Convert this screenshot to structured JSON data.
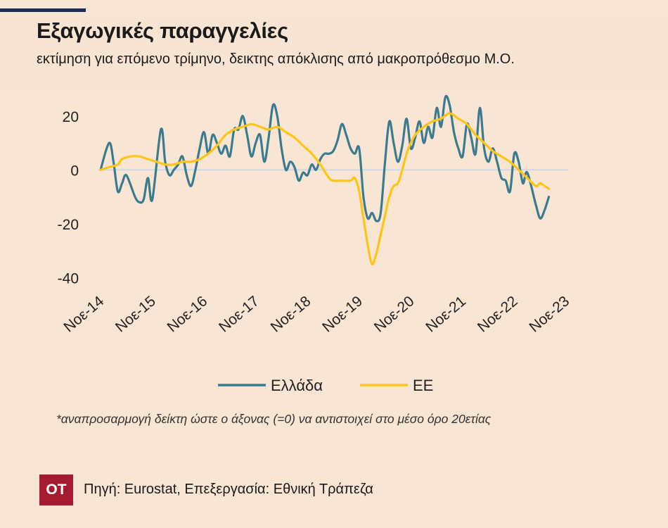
{
  "header": {
    "title": "Εξαγωγικές παραγγελίες",
    "subtitle": "εκτίμηση για επόμενο τρίμηνο, δεικτης απόκλισης από μακροπρόθεσμο Μ.Ο."
  },
  "footnote": "*αναπροσαρμογή δείκτη ώστε ο άξονας (=0) να αντιστοιχεί στο μέσο όρο 20ετίας",
  "source": "Πηγή: Eurostat, Επεξεργασία: Εθνική Τράπεζα",
  "logo_text": "ΟΤ",
  "colors": {
    "greece": "#3a7b8f",
    "eu": "#fec515",
    "zero_line": "#cfd8e3",
    "background": "#f9e5d3",
    "logo": "#a51c30"
  },
  "chart_data": {
    "type": "line",
    "title": "Εξαγωγικές παραγγελίες",
    "subtitle": "εκτίμηση για επόμενο τρίμηνο, δεικτης απόκλισης από μακροπρόθεσμο Μ.Ο.",
    "x_ticks": [
      "Νοε-14",
      "Νοε-15",
      "Νοε-16",
      "Νοε-17",
      "Νοε-18",
      "Νοε-19",
      "Νοε-20",
      "Νοε-21",
      "Νοε-22",
      "Νοε-23"
    ],
    "x_range": [
      "2014-11",
      "2023-11"
    ],
    "y_ticks": [
      20,
      0,
      -20,
      -40
    ],
    "ylim": [
      -42,
      27
    ],
    "grid": false,
    "legend_position": "bottom",
    "series": [
      {
        "name": "Ελλάδα",
        "color": "#3a7b8f",
        "points": [
          [
            "2014-11",
            0
          ],
          [
            "2015-01",
            10
          ],
          [
            "2015-02",
            3
          ],
          [
            "2015-03",
            -8
          ],
          [
            "2015-04",
            -5
          ],
          [
            "2015-05",
            -2
          ],
          [
            "2015-07",
            -10
          ],
          [
            "2015-08",
            -12
          ],
          [
            "2015-09",
            -11
          ],
          [
            "2015-10",
            -3
          ],
          [
            "2015-11",
            -11
          ],
          [
            "2016-01",
            15
          ],
          [
            "2016-02",
            3
          ],
          [
            "2016-03",
            -2
          ],
          [
            "2016-04",
            0
          ],
          [
            "2016-05",
            2
          ],
          [
            "2016-06",
            5
          ],
          [
            "2016-07",
            -2
          ],
          [
            "2016-08",
            -6
          ],
          [
            "2016-09",
            0
          ],
          [
            "2016-10",
            8
          ],
          [
            "2016-11",
            14
          ],
          [
            "2016-12",
            6
          ],
          [
            "2017-01",
            13
          ],
          [
            "2017-02",
            10
          ],
          [
            "2017-03",
            6
          ],
          [
            "2017-04",
            9
          ],
          [
            "2017-05",
            5
          ],
          [
            "2017-06",
            15
          ],
          [
            "2017-07",
            15
          ],
          [
            "2017-08",
            20
          ],
          [
            "2017-09",
            13
          ],
          [
            "2017-10",
            5
          ],
          [
            "2017-11",
            10
          ],
          [
            "2017-12",
            13
          ],
          [
            "2018-01",
            3
          ],
          [
            "2018-02",
            12
          ],
          [
            "2018-03",
            24
          ],
          [
            "2018-04",
            20
          ],
          [
            "2018-05",
            8
          ],
          [
            "2018-06",
            0
          ],
          [
            "2018-07",
            3
          ],
          [
            "2018-08",
            1
          ],
          [
            "2018-09",
            -4
          ],
          [
            "2018-10",
            -1
          ],
          [
            "2018-11",
            -2
          ],
          [
            "2018-12",
            2
          ],
          [
            "2019-01",
            0
          ],
          [
            "2019-02",
            4
          ],
          [
            "2019-03",
            6
          ],
          [
            "2019-04",
            6
          ],
          [
            "2019-05",
            7
          ],
          [
            "2019-06",
            11
          ],
          [
            "2019-07",
            17
          ],
          [
            "2019-08",
            13
          ],
          [
            "2019-09",
            8
          ],
          [
            "2019-10",
            6
          ],
          [
            "2019-11",
            8
          ],
          [
            "2019-12",
            -10
          ],
          [
            "2020-01",
            -18
          ],
          [
            "2020-02",
            -16
          ],
          [
            "2020-03",
            -19
          ],
          [
            "2020-04",
            -16
          ],
          [
            "2020-05",
            3
          ],
          [
            "2020-06",
            18
          ],
          [
            "2020-07",
            10
          ],
          [
            "2020-08",
            3
          ],
          [
            "2020-09",
            9
          ],
          [
            "2020-10",
            19
          ],
          [
            "2020-11",
            8
          ],
          [
            "2020-12",
            12
          ],
          [
            "2021-01",
            18
          ],
          [
            "2021-02",
            10
          ],
          [
            "2021-03",
            16
          ],
          [
            "2021-04",
            12
          ],
          [
            "2021-05",
            23
          ],
          [
            "2021-06",
            16
          ],
          [
            "2021-07",
            27
          ],
          [
            "2021-08",
            24
          ],
          [
            "2021-09",
            14
          ],
          [
            "2021-10",
            8
          ],
          [
            "2021-11",
            5
          ],
          [
            "2021-12",
            17
          ],
          [
            "2022-01",
            12
          ],
          [
            "2022-02",
            6
          ],
          [
            "2022-03",
            23
          ],
          [
            "2022-04",
            8
          ],
          [
            "2022-05",
            3
          ],
          [
            "2022-06",
            8
          ],
          [
            "2022-07",
            3
          ],
          [
            "2022-08",
            -3
          ],
          [
            "2022-09",
            -4
          ],
          [
            "2022-10",
            -8
          ],
          [
            "2022-11",
            6
          ],
          [
            "2022-12",
            3
          ],
          [
            "2023-01",
            -5
          ],
          [
            "2023-02",
            -1
          ],
          [
            "2023-04",
            -13
          ],
          [
            "2023-05",
            -18
          ],
          [
            "2023-06",
            -15
          ],
          [
            "2023-07",
            -10
          ]
        ]
      },
      {
        "name": "ΕΕ",
        "color": "#fec515",
        "points": [
          [
            "2014-11",
            0
          ],
          [
            "2015-01",
            1
          ],
          [
            "2015-03",
            2
          ],
          [
            "2015-04",
            4
          ],
          [
            "2015-06",
            5
          ],
          [
            "2015-08",
            5
          ],
          [
            "2015-10",
            4
          ],
          [
            "2015-12",
            3
          ],
          [
            "2016-02",
            2
          ],
          [
            "2016-04",
            2
          ],
          [
            "2016-06",
            3
          ],
          [
            "2016-08",
            3
          ],
          [
            "2016-10",
            4
          ],
          [
            "2016-12",
            6
          ],
          [
            "2017-02",
            9
          ],
          [
            "2017-04",
            13
          ],
          [
            "2017-06",
            15
          ],
          [
            "2017-08",
            16
          ],
          [
            "2017-10",
            17
          ],
          [
            "2017-12",
            16
          ],
          [
            "2018-02",
            15
          ],
          [
            "2018-04",
            16
          ],
          [
            "2018-06",
            14
          ],
          [
            "2018-08",
            12
          ],
          [
            "2018-10",
            9
          ],
          [
            "2018-12",
            6
          ],
          [
            "2019-02",
            2
          ],
          [
            "2019-04",
            -3
          ],
          [
            "2019-05",
            -4
          ],
          [
            "2019-07",
            -4
          ],
          [
            "2019-09",
            -4
          ],
          [
            "2019-10",
            -3
          ],
          [
            "2019-11",
            -8
          ],
          [
            "2019-12",
            -18
          ],
          [
            "2020-01",
            -28
          ],
          [
            "2020-02",
            -35
          ],
          [
            "2020-03",
            -31
          ],
          [
            "2020-04",
            -24
          ],
          [
            "2020-05",
            -17
          ],
          [
            "2020-06",
            -10
          ],
          [
            "2020-07",
            -6
          ],
          [
            "2020-08",
            -5
          ],
          [
            "2020-09",
            0
          ],
          [
            "2020-10",
            6
          ],
          [
            "2020-11",
            10
          ],
          [
            "2020-12",
            13
          ],
          [
            "2021-02",
            16
          ],
          [
            "2021-04",
            18
          ],
          [
            "2021-06",
            19
          ],
          [
            "2021-08",
            21
          ],
          [
            "2021-10",
            19
          ],
          [
            "2021-12",
            17
          ],
          [
            "2022-02",
            13
          ],
          [
            "2022-04",
            10
          ],
          [
            "2022-06",
            7
          ],
          [
            "2022-08",
            5
          ],
          [
            "2022-10",
            3
          ],
          [
            "2022-12",
            0
          ],
          [
            "2023-02",
            -3
          ],
          [
            "2023-04",
            -6
          ],
          [
            "2023-05",
            -5
          ],
          [
            "2023-06",
            -6
          ],
          [
            "2023-07",
            -7
          ]
        ]
      }
    ]
  }
}
